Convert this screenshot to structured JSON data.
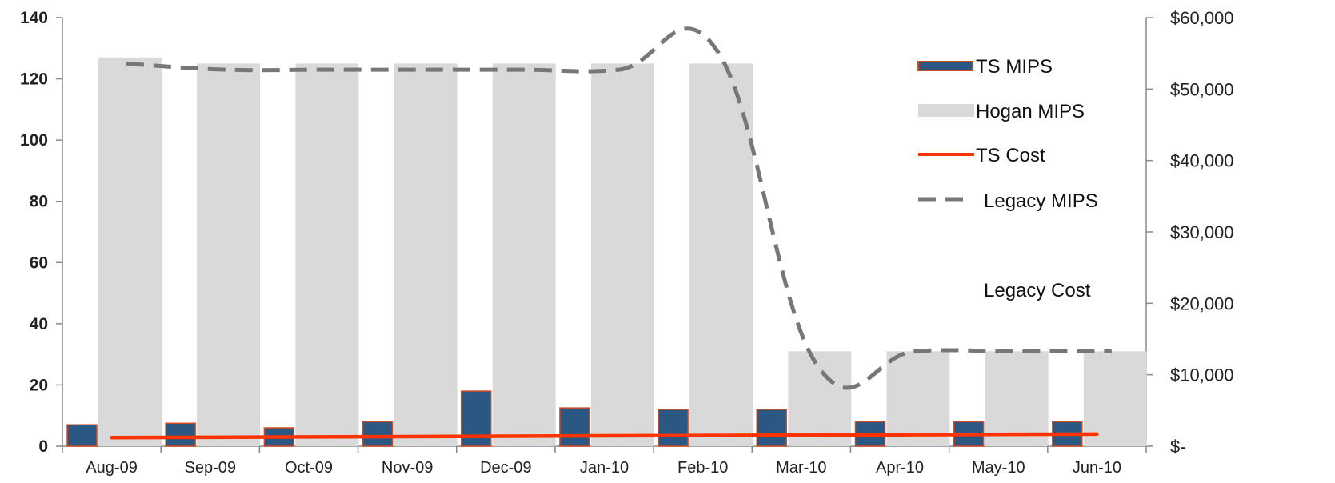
{
  "chart_data": {
    "type": "bar",
    "categories": [
      "Aug-09",
      "Sep-09",
      "Oct-09",
      "Nov-09",
      "Dec-09",
      "Jan-10",
      "Feb-10",
      "Mar-10",
      "Apr-10",
      "May-10",
      "Jun-10"
    ],
    "series": [
      {
        "name": "TS MIPS",
        "kind": "bar",
        "axis": "left",
        "color": "#2b5882",
        "edge": "#d04a1f",
        "values": [
          7,
          7.5,
          6,
          8,
          18,
          12.5,
          12,
          12,
          8,
          8,
          8
        ]
      },
      {
        "name": "Hogan MIPS",
        "kind": "bar",
        "axis": "left",
        "color": "#d9d9d9",
        "values": [
          127,
          125,
          125,
          125,
          125,
          125,
          125,
          31,
          31,
          31,
          31
        ]
      },
      {
        "name": "TS Cost",
        "kind": "line",
        "axis": "right",
        "color": "#ff3300",
        "values": [
          1200,
          1250,
          1300,
          1350,
          1400,
          1450,
          1500,
          1550,
          1600,
          1650,
          1700
        ]
      },
      {
        "name": "Legacy MIPS",
        "kind": "dashed-line",
        "axis": "left",
        "color": "#777777",
        "values": [
          125,
          123,
          123,
          123,
          123,
          123,
          129,
          27,
          31,
          31,
          31
        ]
      }
    ],
    "legend_extra": "Legacy Cost",
    "left_axis": {
      "ylim": [
        0,
        140
      ],
      "ticks": [
        "0",
        "20",
        "40",
        "60",
        "80",
        "100",
        "120",
        "140"
      ]
    },
    "right_axis": {
      "ylim": [
        0,
        60000
      ],
      "ticks": [
        "$-",
        "$10,000",
        "$20,000",
        "$30,000",
        "$40,000",
        "$50,000",
        "$60,000"
      ]
    },
    "legend_position": "top-right",
    "grid": false
  }
}
